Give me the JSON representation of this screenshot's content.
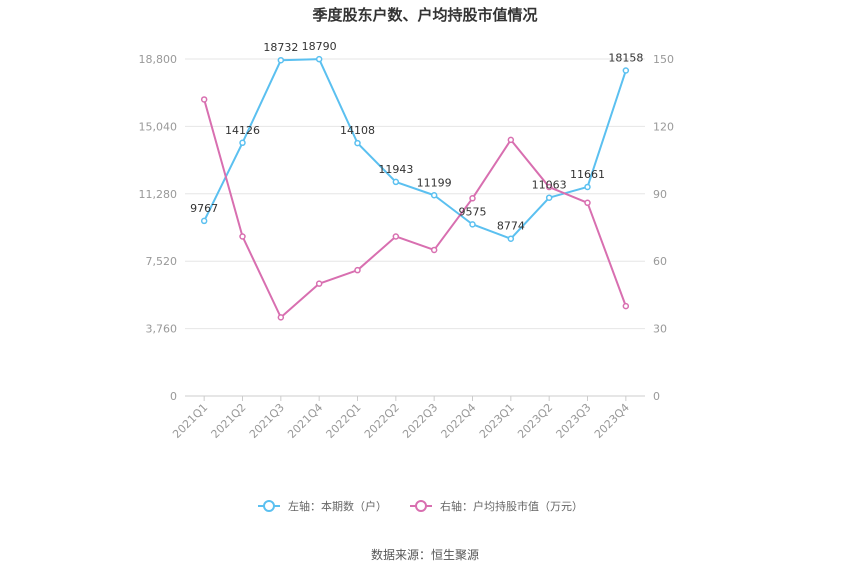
{
  "chart_data": {
    "type": "line",
    "title": "季度股东户数、户均持股市值情况",
    "categories": [
      "2021Q1",
      "2021Q2",
      "2021Q3",
      "2021Q4",
      "2022Q1",
      "2022Q2",
      "2022Q3",
      "2022Q4",
      "2023Q1",
      "2023Q2",
      "2023Q3",
      "2023Q4"
    ],
    "left_axis": {
      "min": 0,
      "max": 18800,
      "ticks": [
        "0",
        "3,760",
        "7,520",
        "11,280",
        "15,040",
        "18,800"
      ]
    },
    "right_axis": {
      "min": 0,
      "max": 150,
      "ticks": [
        "0",
        "30",
        "60",
        "90",
        "120",
        "150"
      ]
    },
    "series": [
      {
        "name": "左轴：本期数（户）",
        "axis": "left",
        "color": "#5bc0f0",
        "values": [
          9767,
          14126,
          18732,
          18790,
          14108,
          11943,
          11199,
          9575,
          8774,
          11063,
          11661,
          18158
        ],
        "labels": [
          "9767",
          "14126",
          "18732",
          "18790",
          "14108",
          "11943",
          "11199",
          "9575",
          "8774",
          "11063",
          "11661",
          "18158"
        ]
      },
      {
        "name": "右轴：户均持股市值（万元）",
        "axis": "right",
        "color": "#d86fb0",
        "values": [
          132,
          71,
          35,
          50,
          56,
          71,
          65,
          88,
          114,
          93,
          86,
          40
        ]
      }
    ],
    "grid": true,
    "legend": "bottom",
    "source": "数据来源：恒生聚源"
  }
}
